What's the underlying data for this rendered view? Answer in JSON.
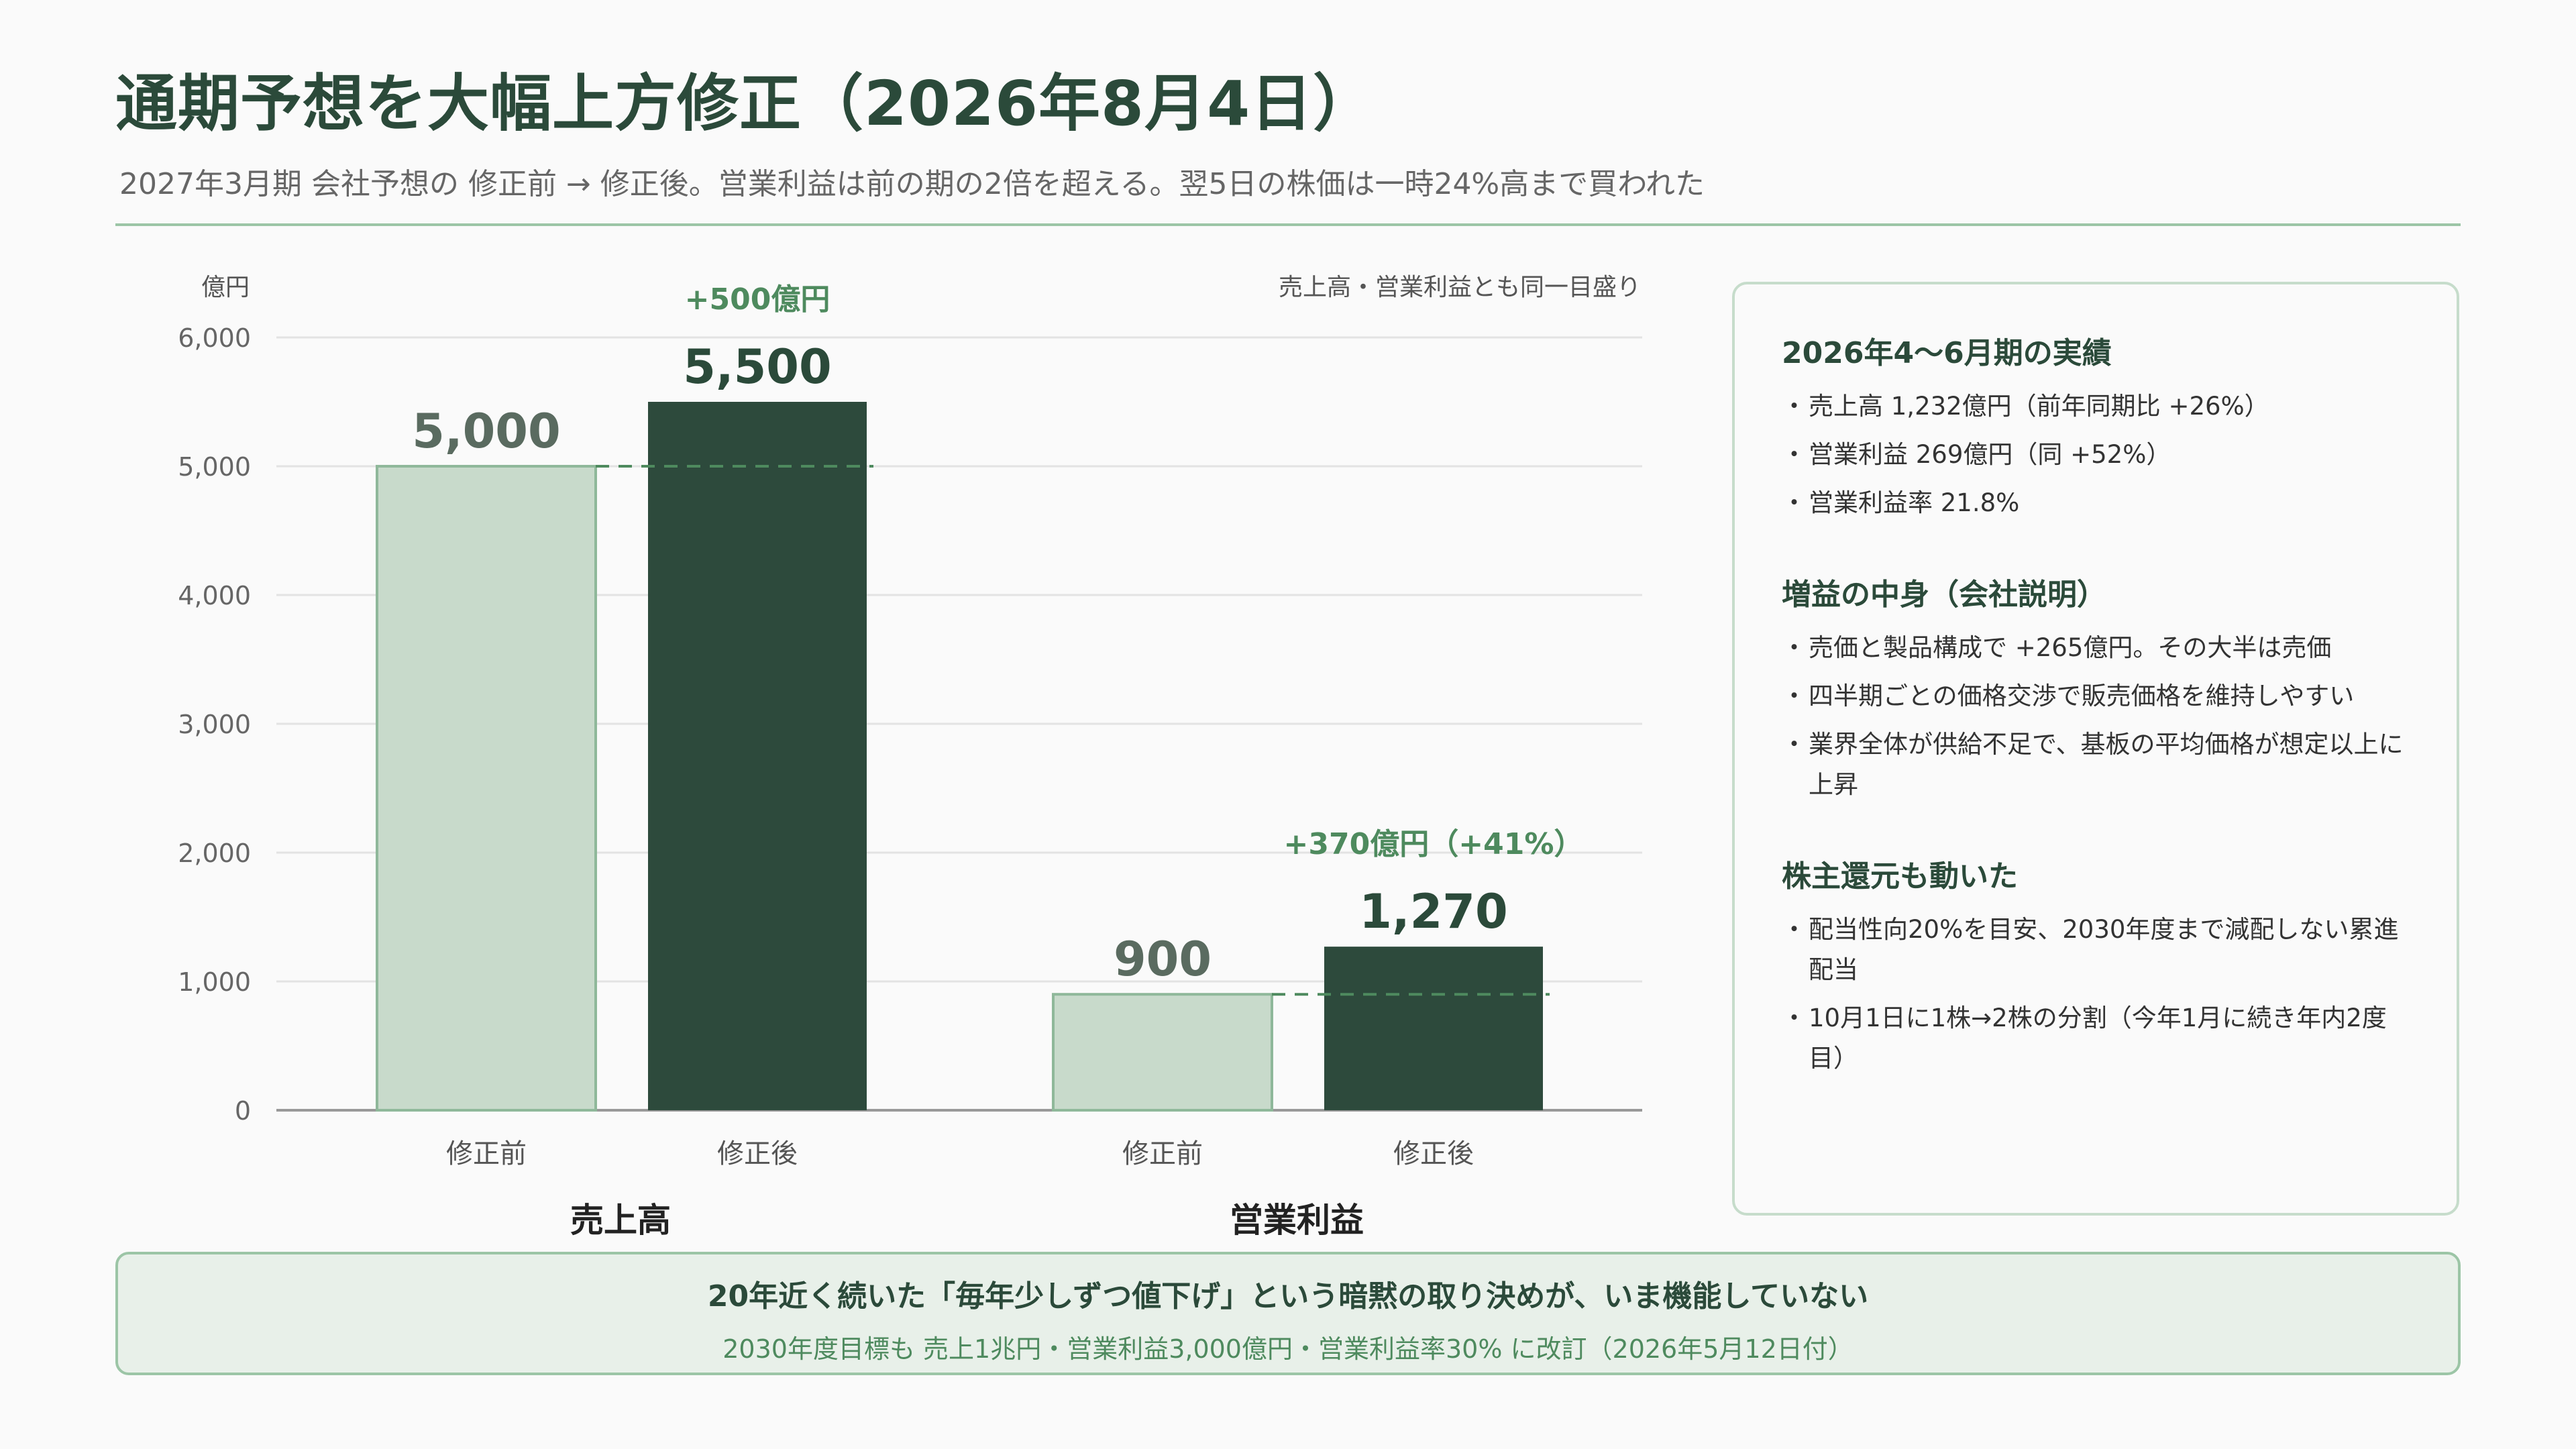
{
  "header": {
    "title": "通期予想を大幅上方修正（2026年8月4日）",
    "subtitle": "2027年3月期 会社予想の 修正前 → 修正後。営業利益は前の期の2倍を超える。翌5日の株価は一時24%高まで買われた"
  },
  "chart_data": {
    "type": "bar",
    "yunit": "億円",
    "note": "売上高・営業利益とも同一目盛り",
    "ylim": [
      0,
      6000
    ],
    "yticks": [
      0,
      1000,
      2000,
      3000,
      4000,
      5000,
      6000
    ],
    "yticklabels": [
      "0",
      "1,000",
      "2,000",
      "3,000",
      "4,000",
      "5,000",
      "6,000"
    ],
    "grid": true,
    "groups": [
      {
        "name": "売上高",
        "bars": [
          {
            "label": "修正前",
            "value": 5000,
            "value_label": "5,000"
          },
          {
            "label": "修正後",
            "value": 5500,
            "value_label": "5,500"
          }
        ],
        "delta_label": "+500億円"
      },
      {
        "name": "営業利益",
        "bars": [
          {
            "label": "修正前",
            "value": 900,
            "value_label": "900"
          },
          {
            "label": "修正後",
            "value": 1270,
            "value_label": "1,270"
          }
        ],
        "delta_label": "+370億円（+41%）"
      }
    ],
    "colors": {
      "before_fill": "#c8dacb",
      "before_stroke": "#8fb89a",
      "after_fill": "#2d4a3c",
      "dashed": "#4e8a5e",
      "delta": "#4e8a5e"
    }
  },
  "panel": {
    "sections": [
      {
        "heading": "2026年4〜6月期の実績",
        "items": [
          "売上高 1,232億円（前年同期比 +26%）",
          "営業利益 269億円（同 +52%）",
          "営業利益率 21.8%"
        ]
      },
      {
        "heading": "増益の中身（会社説明）",
        "items": [
          "売価と製品構成で +265億円。その大半は売価",
          "四半期ごとの価格交渉で販売価格を維持しやすい",
          "業界全体が供給不足で、基板の平均価格が想定以上に上昇"
        ]
      },
      {
        "heading": "株主還元も動いた",
        "items": [
          "配当性向20%を目安、2030年度まで減配しない累進配当",
          "10月1日に1株→2株の分割（今年1月に続き年内2度目）"
        ]
      }
    ]
  },
  "banner": {
    "main": "20年近く続いた「毎年少しずつ値下げ」という暗黙の取り決めが、いま機能していない",
    "sub": "2030年度目標も 売上1兆円・営業利益3,000億円・営業利益率30% に改訂（2026年5月12日付）"
  }
}
